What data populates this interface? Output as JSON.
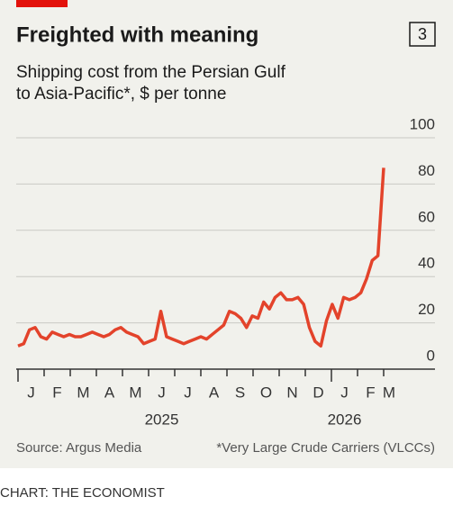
{
  "chart_data": {
    "type": "line",
    "title": "Freighted with meaning",
    "chart_number": "3",
    "subtitle": [
      "Shipping cost from the Persian Gulf",
      "to Asia-Pacific*, $ per tonne"
    ],
    "months": [
      "J",
      "F",
      "M",
      "A",
      "M",
      "J",
      "J",
      "A",
      "S",
      "O",
      "N",
      "D",
      "J",
      "F",
      "M"
    ],
    "years": [
      "2025",
      "2026"
    ],
    "series": [
      {
        "name": "Shipping cost",
        "color": "#e3432b",
        "values": [
          10,
          11,
          17,
          18,
          14,
          13,
          16,
          15,
          14,
          15,
          14,
          14,
          15,
          16,
          15,
          14,
          15,
          17,
          18,
          16,
          15,
          14,
          11,
          12,
          13,
          25,
          14,
          13,
          12,
          11,
          12,
          13,
          14,
          13,
          15,
          17,
          19,
          25,
          24,
          22,
          18,
          23,
          22,
          29,
          26,
          31,
          33,
          30,
          30,
          31,
          28,
          18,
          12,
          10,
          21,
          28,
          22,
          31,
          30,
          31,
          33,
          39,
          47,
          49,
          87
        ]
      }
    ],
    "ylim": [
      0,
      100
    ],
    "yticks": [
      0,
      20,
      40,
      60,
      80,
      100
    ],
    "grid": true,
    "source": "Source: Argus Media",
    "footnote": "*Very Large Crude Carriers (VLCCs)",
    "credit": "CHART: THE ECONOMIST"
  }
}
